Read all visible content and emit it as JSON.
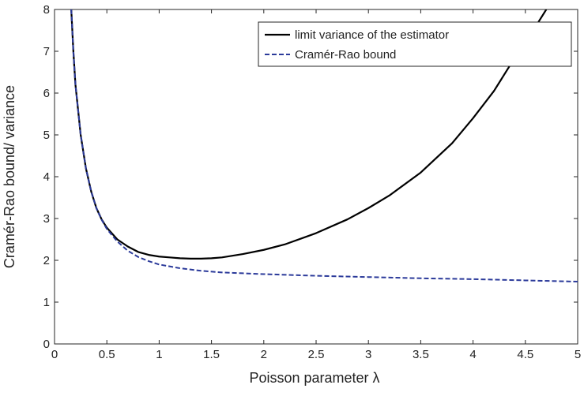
{
  "chart_data": {
    "type": "line",
    "title": "",
    "xlabel": "Poisson parameter λ",
    "ylabel": "Cramér-Rao bound/ variance",
    "xlim": [
      0,
      5
    ],
    "ylim": [
      0,
      8
    ],
    "xticks": [
      0,
      0.5,
      1,
      1.5,
      2,
      2.5,
      3,
      3.5,
      4,
      4.5,
      5
    ],
    "yticks": [
      0,
      1,
      2,
      3,
      4,
      5,
      6,
      7,
      8
    ],
    "grid": false,
    "legend_position": "top-right",
    "series": [
      {
        "name": "limit variance of the estimator",
        "color": "#000000",
        "dash": "solid",
        "x": [
          0.16,
          0.18,
          0.2,
          0.25,
          0.3,
          0.35,
          0.4,
          0.45,
          0.5,
          0.6,
          0.7,
          0.8,
          0.9,
          1.0,
          1.1,
          1.2,
          1.3,
          1.4,
          1.5,
          1.6,
          1.8,
          2.0,
          2.2,
          2.5,
          2.8,
          3.0,
          3.2,
          3.5,
          3.8,
          4.0,
          4.2,
          4.4,
          4.6,
          4.7
        ],
        "y": [
          8.0,
          7.0,
          6.2,
          5.0,
          4.2,
          3.65,
          3.25,
          2.98,
          2.78,
          2.5,
          2.33,
          2.2,
          2.13,
          2.09,
          2.07,
          2.05,
          2.04,
          2.04,
          2.05,
          2.07,
          2.15,
          2.25,
          2.38,
          2.65,
          2.98,
          3.25,
          3.55,
          4.1,
          4.8,
          5.4,
          6.05,
          6.85,
          7.6,
          8.0
        ]
      },
      {
        "name": "Cramér-Rao bound",
        "color": "#2b3a9a",
        "dash": "dashed",
        "x": [
          0.16,
          0.18,
          0.2,
          0.25,
          0.3,
          0.35,
          0.4,
          0.45,
          0.5,
          0.6,
          0.7,
          0.8,
          0.9,
          1.0,
          1.2,
          1.4,
          1.6,
          1.8,
          2.0,
          2.5,
          3.0,
          3.5,
          4.0,
          4.5,
          5.0
        ],
        "y": [
          8.0,
          7.0,
          6.2,
          5.0,
          4.2,
          3.65,
          3.25,
          2.97,
          2.75,
          2.45,
          2.23,
          2.08,
          1.98,
          1.9,
          1.81,
          1.75,
          1.71,
          1.69,
          1.67,
          1.63,
          1.6,
          1.57,
          1.55,
          1.52,
          1.49
        ]
      }
    ]
  }
}
